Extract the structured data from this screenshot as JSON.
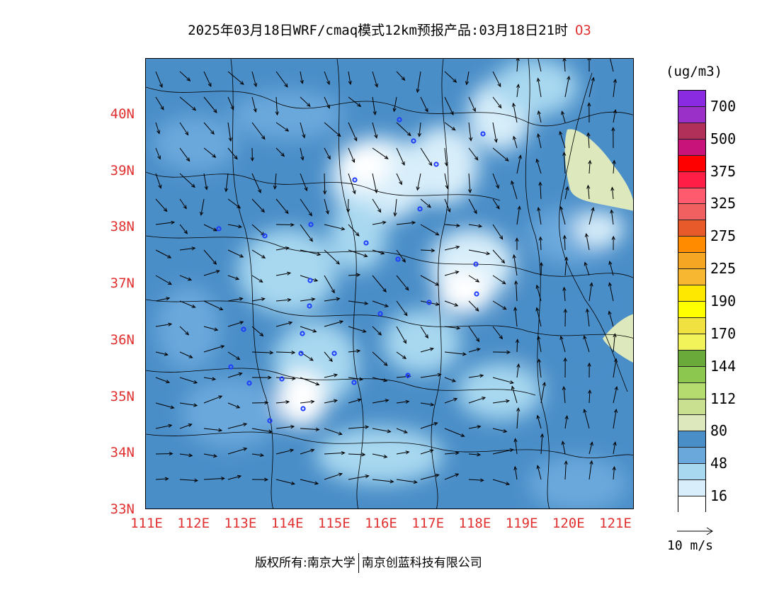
{
  "title": {
    "text": "2025年03月18日WRF/cmaq模式12km预报产品:03月18日21时",
    "pollutant": "O3"
  },
  "lat_labels": [
    "40N",
    "39N",
    "38N",
    "37N",
    "36N",
    "35N",
    "34N",
    "33N"
  ],
  "lon_labels": [
    "111E",
    "112E",
    "113E",
    "114E",
    "115E",
    "116E",
    "117E",
    "118E",
    "119E",
    "120E",
    "121E"
  ],
  "legend": {
    "unit": "(ug/m3)",
    "labels": [
      "700",
      "500",
      "375",
      "325",
      "275",
      "225",
      "190",
      "170",
      "144",
      "112",
      "80",
      "48",
      "16"
    ],
    "colors": [
      "#8a2be2",
      "#9b30c8",
      "#b0305a",
      "#c8147a",
      "#ff0000",
      "#ff1e46",
      "#ff5a6e",
      "#f06060",
      "#e85a2a",
      "#ff8c00",
      "#f5a623",
      "#f7b731",
      "#ffe800",
      "#ffff00",
      "#f0e040",
      "#f2f25a",
      "#6aaa3a",
      "#8cc850",
      "#b4dc6e",
      "#c8e090",
      "#dde8bc",
      "#4a8ec8",
      "#6aa8dc",
      "#a8d8f0",
      "#d8eefa",
      "#ffffff"
    ]
  },
  "wind_key": {
    "label": "10 m/s"
  },
  "footer": {
    "copyright": "版权所有:南京大学",
    "company": "南京创蓝科技有限公司"
  },
  "colors": {
    "axis_label": "#e03030",
    "city_marker": "#1e3cff"
  }
}
